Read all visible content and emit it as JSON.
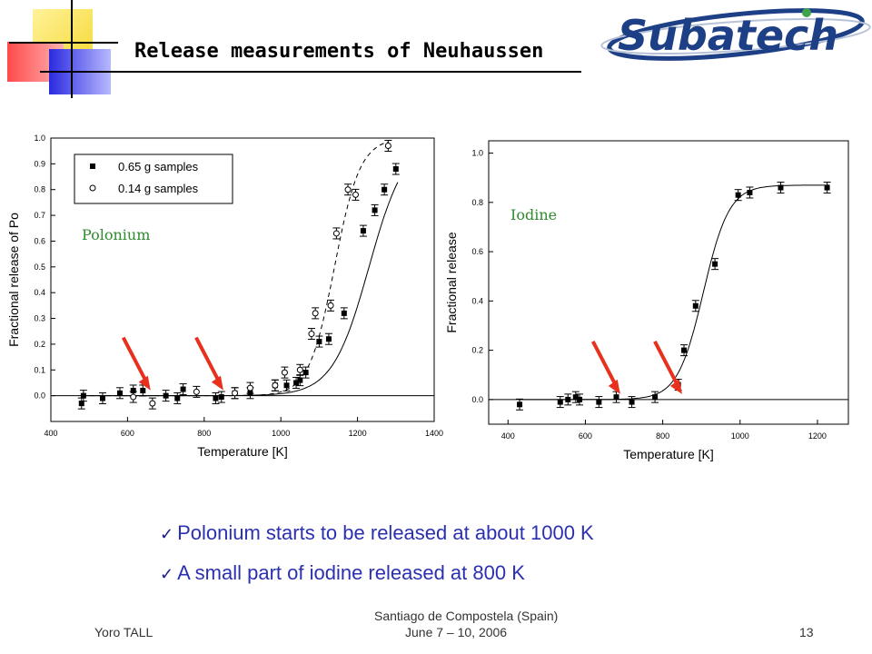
{
  "slide": {
    "title": "Release measurements of Neuhaussen",
    "logo_text": "Subatech",
    "bullets": [
      "Polonium starts to be released at about 1000 K",
      "A small part of iodine released at 800 K"
    ],
    "footer": {
      "author": "Yoro TALL",
      "venue": "Santiago de Compostela (Spain)",
      "date": "June 7 – 10, 2006",
      "page": "13"
    },
    "colors": {
      "title": "#000000",
      "bullets": "#2b30b0",
      "annotation": "#2e8b2e",
      "arrows": "#e8301c"
    }
  },
  "chart_data": [
    {
      "type": "scatter",
      "annotation": "Polonium",
      "xlabel": "Temperature [K]",
      "ylabel": "Fractional release of Po",
      "xlim": [
        400,
        1400
      ],
      "ylim": [
        -0.1,
        1.0
      ],
      "xticks": [
        400,
        600,
        800,
        1000,
        1200,
        1400
      ],
      "yticks": [
        0.0,
        0.1,
        0.2,
        0.3,
        0.4,
        0.5,
        0.6,
        0.7,
        0.8,
        0.9,
        1.0
      ],
      "legend_position": "top-left",
      "series": [
        {
          "name": "0.65 g samples",
          "marker": "filled-square",
          "x": [
            480,
            485,
            535,
            580,
            615,
            640,
            700,
            730,
            745,
            830,
            845,
            880,
            920,
            985,
            1015,
            1040,
            1050,
            1065,
            1100,
            1125,
            1165,
            1215,
            1245,
            1270,
            1300
          ],
          "y": [
            -0.03,
            0.0,
            -0.01,
            0.01,
            0.02,
            0.02,
            0.0,
            -0.01,
            0.025,
            -0.01,
            -0.005,
            0.01,
            0.01,
            0.04,
            0.04,
            0.05,
            0.06,
            0.09,
            0.21,
            0.22,
            0.32,
            0.64,
            0.72,
            0.8,
            0.88
          ],
          "fit": "solid-sigmoid"
        },
        {
          "name": "0.14 g samples",
          "marker": "open-circle",
          "x": [
            615,
            665,
            780,
            880,
            920,
            985,
            1010,
            1050,
            1080,
            1090,
            1130,
            1145,
            1175,
            1195,
            1280
          ],
          "y": [
            -0.005,
            -0.03,
            0.015,
            0.01,
            0.03,
            0.04,
            0.09,
            0.1,
            0.24,
            0.32,
            0.35,
            0.63,
            0.8,
            0.78,
            0.97
          ],
          "fit": "dashed-sigmoid"
        }
      ],
      "arrows_at_x": [
        660,
        850
      ]
    },
    {
      "type": "scatter",
      "annotation": "Iodine",
      "xlabel": "Temperature [K]",
      "ylabel": "Fractional release",
      "xlim": [
        350,
        1280
      ],
      "ylim": [
        -0.1,
        1.05
      ],
      "xticks": [
        400,
        600,
        800,
        1000,
        1200
      ],
      "yticks": [
        0.0,
        0.2,
        0.4,
        0.6,
        0.8,
        1.0
      ],
      "series": [
        {
          "name": "",
          "marker": "filled-square",
          "x": [
            430,
            535,
            555,
            575,
            585,
            635,
            680,
            720,
            780,
            840,
            855,
            885,
            935,
            995,
            1025,
            1105,
            1225
          ],
          "y": [
            -0.02,
            -0.01,
            0.0,
            0.01,
            0.0,
            -0.01,
            0.01,
            -0.01,
            0.01,
            0.06,
            0.2,
            0.38,
            0.55,
            0.83,
            0.84,
            0.86,
            0.86
          ],
          "fit": "solid-sigmoid"
        }
      ],
      "arrows_at_x": [
        690,
        850
      ]
    }
  ]
}
